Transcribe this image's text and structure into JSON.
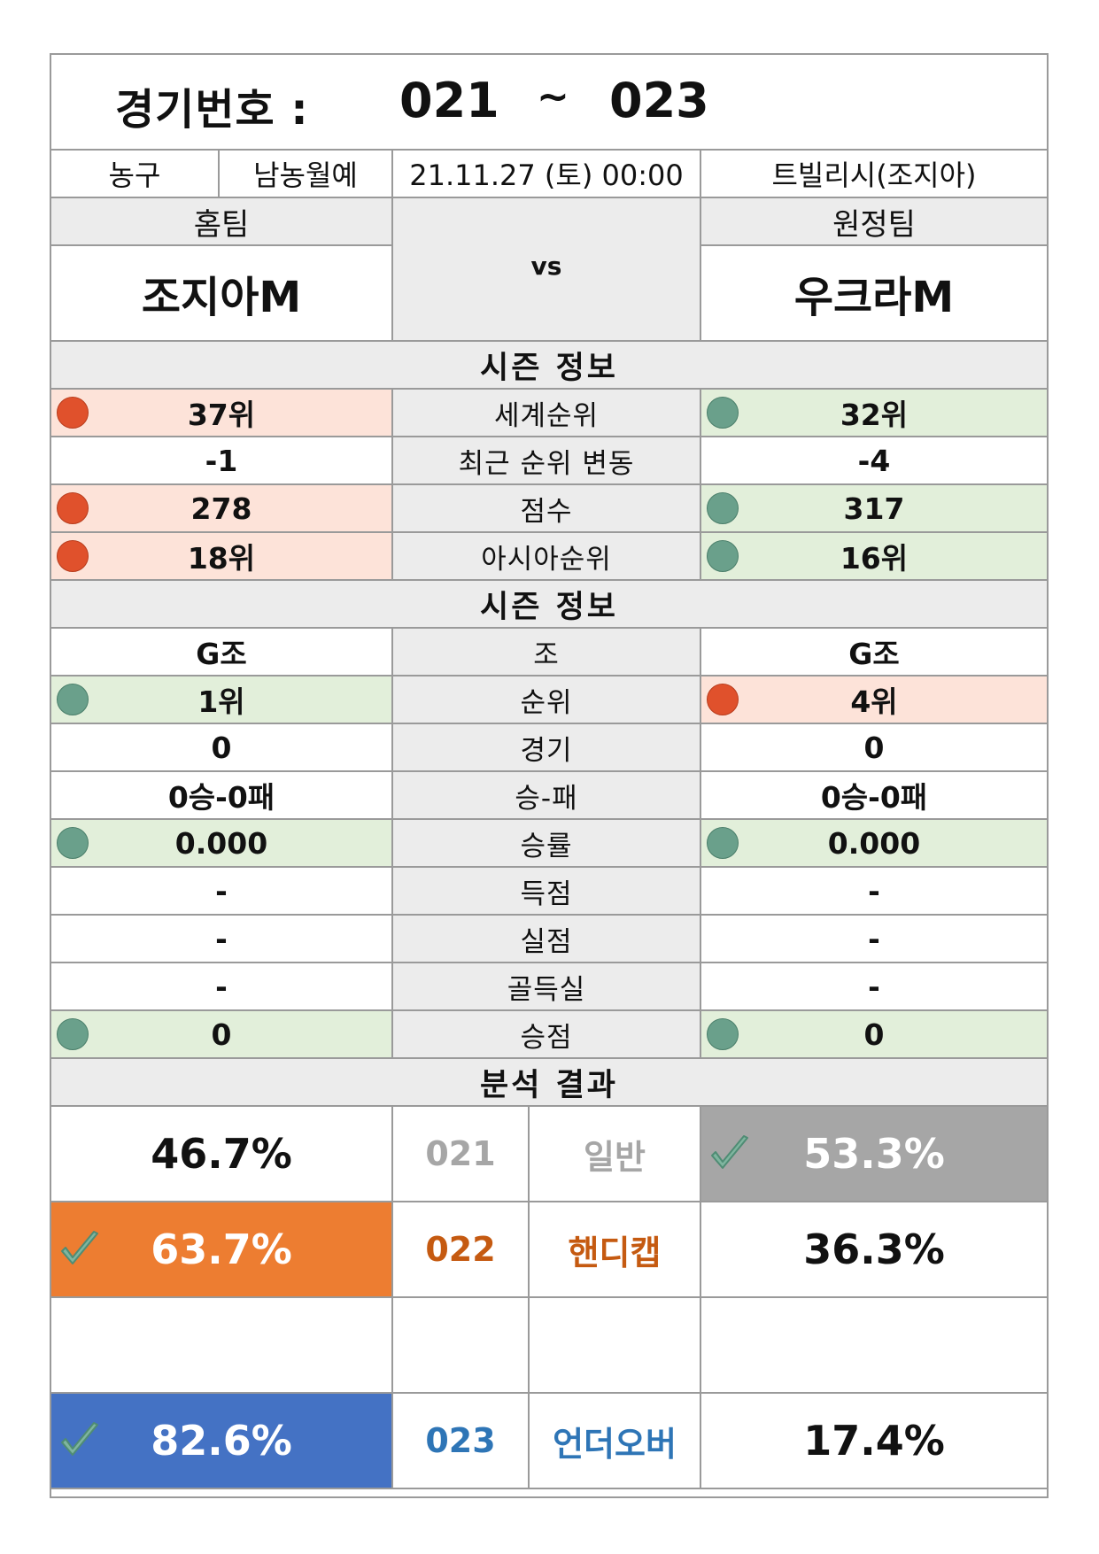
{
  "header": {
    "label": "경기번호 :",
    "from": "021",
    "tilde": "~",
    "to": "023"
  },
  "info": {
    "sport": "농구",
    "league": "남농월예",
    "datetime": "21.11.27 (토) 00:00",
    "venue": "트빌리시(조지아)"
  },
  "teams": {
    "home_label": "홈팀",
    "away_label": "원정팀",
    "home": "조지아M",
    "away": "우크라M",
    "vs": "vs"
  },
  "season_title": "시즌 정보",
  "season_rows": [
    {
      "label": "세계순위",
      "home": "37위",
      "away": "32위",
      "home_status": "worse",
      "away_status": "better"
    },
    {
      "label": "최근 순위 변동",
      "home": "-1",
      "away": "-4",
      "home_status": "none",
      "away_status": "none"
    },
    {
      "label": "점수",
      "home": "278",
      "away": "317",
      "home_status": "worse",
      "away_status": "better"
    },
    {
      "label": "아시아순위",
      "home": "18위",
      "away": "16위",
      "home_status": "worse",
      "away_status": "better"
    }
  ],
  "group_title": "시즌 정보",
  "group_rows": [
    {
      "label": "조",
      "home": "G조",
      "away": "G조",
      "home_status": "none",
      "away_status": "none"
    },
    {
      "label": "순위",
      "home": "1위",
      "away": "4위",
      "home_status": "better",
      "away_status": "worse"
    },
    {
      "label": "경기",
      "home": "0",
      "away": "0",
      "home_status": "none",
      "away_status": "none"
    },
    {
      "label": "승-패",
      "home": "0승-0패",
      "away": "0승-0패",
      "home_status": "none",
      "away_status": "none"
    },
    {
      "label": "승률",
      "home": "0.000",
      "away": "0.000",
      "home_status": "better",
      "away_status": "better"
    },
    {
      "label": "득점",
      "home": "-",
      "away": "-",
      "home_status": "none",
      "away_status": "none"
    },
    {
      "label": "실점",
      "home": "-",
      "away": "-",
      "home_status": "none",
      "away_status": "none"
    },
    {
      "label": "골득실",
      "home": "-",
      "away": "-",
      "home_status": "none",
      "away_status": "none"
    },
    {
      "label": "승점",
      "home": "0",
      "away": "0",
      "home_status": "better",
      "away_status": "better"
    }
  ],
  "analysis_title": "분석 결과",
  "analysis": [
    {
      "code": "021",
      "type": "일반",
      "home_pct": "46.7%",
      "away_pct": "53.3%",
      "pick": "away",
      "pick_color": "#a6a6a6",
      "text_color": "#a6a6a6"
    },
    {
      "code": "022",
      "type": "핸디캡",
      "home_pct": "63.7%",
      "away_pct": "36.3%",
      "pick": "home",
      "pick_color": "#ed7d31",
      "text_color": "#c55a11"
    },
    {
      "code": "",
      "type": "",
      "home_pct": "",
      "away_pct": "",
      "pick": "none",
      "pick_color": "",
      "text_color": ""
    },
    {
      "code": "023",
      "type": "언더오버",
      "home_pct": "82.6%",
      "away_pct": "17.4%",
      "pick": "home",
      "pick_color": "#4472c4",
      "text_color": "#2e75b6"
    }
  ],
  "colors": {
    "worse_bg": "#fde3d9",
    "better_bg": "#e2efda",
    "worse_dot": "#e0512c",
    "better_dot": "#6aa08b",
    "border": "#9a9a9a",
    "label_bg": "#ececec"
  },
  "icons": {
    "worse": "red-circle",
    "better": "green-circle",
    "pick": "check-icon"
  }
}
